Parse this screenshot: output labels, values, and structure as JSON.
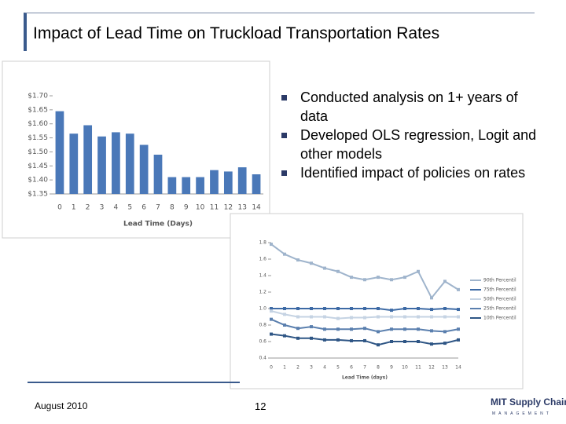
{
  "slide": {
    "title": "Impact of Lead Time on Truckload Transportation Rates",
    "bullets": [
      "Conducted analysis on 1+ years of data",
      "Developed OLS regression, Logit and other models",
      "Identified impact of policies on rates"
    ],
    "date": "August 2010",
    "page": "12",
    "logo": "MIT Supply Chain",
    "logo_sub": "MANAGEMENT"
  },
  "chart_data": [
    {
      "type": "bar",
      "xlabel": "Lead Time (Days)",
      "categories": [
        "0",
        "1",
        "2",
        "3",
        "4",
        "5",
        "6",
        "7",
        "8",
        "9",
        "10",
        "11",
        "12",
        "13",
        "14"
      ],
      "values": [
        1.645,
        1.565,
        1.595,
        1.555,
        1.57,
        1.565,
        1.525,
        1.49,
        1.41,
        1.41,
        1.41,
        1.435,
        1.43,
        1.445,
        1.42
      ],
      "color": "#4a78b8",
      "ylim": [
        1.35,
        1.7
      ],
      "yticks": [
        {
          "value": 1.35,
          "label": "$1.35"
        },
        {
          "value": 1.4,
          "label": "$1.40"
        },
        {
          "value": 1.45,
          "label": "$1.45"
        },
        {
          "value": 1.5,
          "label": "$1.50"
        },
        {
          "value": 1.55,
          "label": "$1.55"
        },
        {
          "value": 1.6,
          "label": "$1.60"
        },
        {
          "value": 1.65,
          "label": "$1.65"
        },
        {
          "value": 1.7,
          "label": "$1.70"
        }
      ]
    },
    {
      "type": "line",
      "xlabel": "Lead Time (days)",
      "categories": [
        "0",
        "1",
        "2",
        "3",
        "4",
        "5",
        "6",
        "7",
        "8",
        "9",
        "10",
        "11",
        "12",
        "13",
        "14"
      ],
      "ylim": [
        0.4,
        1.8
      ],
      "yticks": [
        0.4,
        0.6,
        0.8,
        {
          "value": 1.0,
          "label": "1.0"
        },
        1.2,
        1.4,
        1.6,
        1.8
      ],
      "series": [
        {
          "name": "90th Percentil",
          "color": "#9fb4cc",
          "values": [
            1.78,
            1.66,
            1.59,
            1.55,
            1.49,
            1.45,
            1.38,
            1.35,
            1.38,
            1.35,
            1.38,
            1.45,
            1.13,
            1.33,
            1.23
          ]
        },
        {
          "name": "75th Percentil",
          "color": "#3d6aa5",
          "values": [
            1.0,
            1.0,
            1.0,
            1.0,
            1.0,
            1.0,
            1.0,
            1.0,
            1.0,
            0.98,
            1.0,
            1.0,
            0.99,
            1.0,
            0.99
          ]
        },
        {
          "name": "50th Percentil",
          "color": "#c5d3e3",
          "values": [
            0.97,
            0.93,
            0.9,
            0.9,
            0.9,
            0.88,
            0.89,
            0.89,
            0.9,
            0.9,
            0.9,
            0.9,
            0.9,
            0.9,
            0.9
          ]
        },
        {
          "name": "25th Percentil",
          "color": "#5a7fae",
          "values": [
            0.87,
            0.8,
            0.76,
            0.78,
            0.75,
            0.75,
            0.75,
            0.76,
            0.72,
            0.75,
            0.75,
            0.75,
            0.73,
            0.72,
            0.75
          ]
        },
        {
          "name": "10th Percentil",
          "color": "#2f5685",
          "values": [
            0.69,
            0.67,
            0.64,
            0.64,
            0.62,
            0.62,
            0.61,
            0.61,
            0.56,
            0.6,
            0.6,
            0.6,
            0.57,
            0.58,
            0.62
          ]
        }
      ]
    }
  ]
}
